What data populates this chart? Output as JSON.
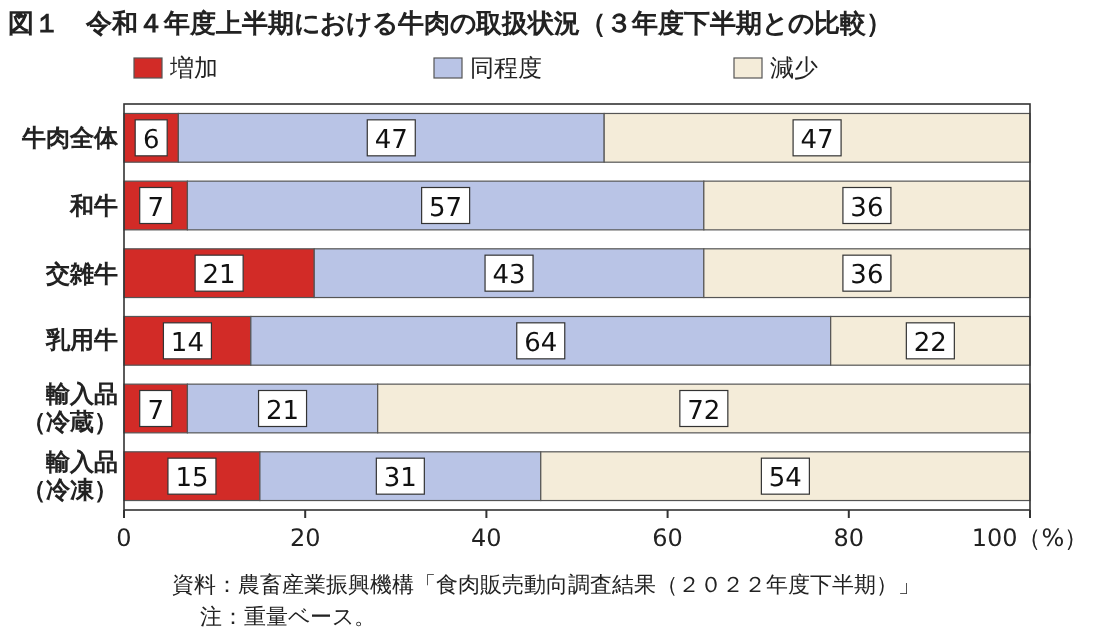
{
  "chart_data": {
    "type": "bar",
    "orientation": "horizontal",
    "stacked": true,
    "data_labels": true,
    "legend": "top",
    "grid": false,
    "title": "図１　令和４年度上半期における牛肉の取扱状況（３年度下半期との比較）",
    "categories": [
      "牛肉全体",
      "和牛",
      "交雑牛",
      "乳用牛",
      "輸入品（冷蔵）",
      "輸入品（冷凍）"
    ],
    "series": [
      {
        "name": "増加",
        "color": "#d22b27",
        "values": [
          6,
          7,
          21,
          14,
          7,
          15
        ]
      },
      {
        "name": "同程度",
        "color": "#b9c4e6",
        "values": [
          47,
          57,
          43,
          64,
          21,
          31
        ]
      },
      {
        "name": "減少",
        "color": "#f4ecd9",
        "values": [
          47,
          36,
          36,
          22,
          72,
          54
        ]
      }
    ],
    "xlim": [
      0,
      100
    ],
    "xticks": [
      0,
      20,
      40,
      60,
      80,
      {
        "value": 100,
        "label": "100（%）"
      }
    ],
    "annotations": [
      "資料：農畜産業振興機構「食肉販売動向調査結果（２０２２年度下半期）」",
      "注：重量ベース。"
    ]
  }
}
